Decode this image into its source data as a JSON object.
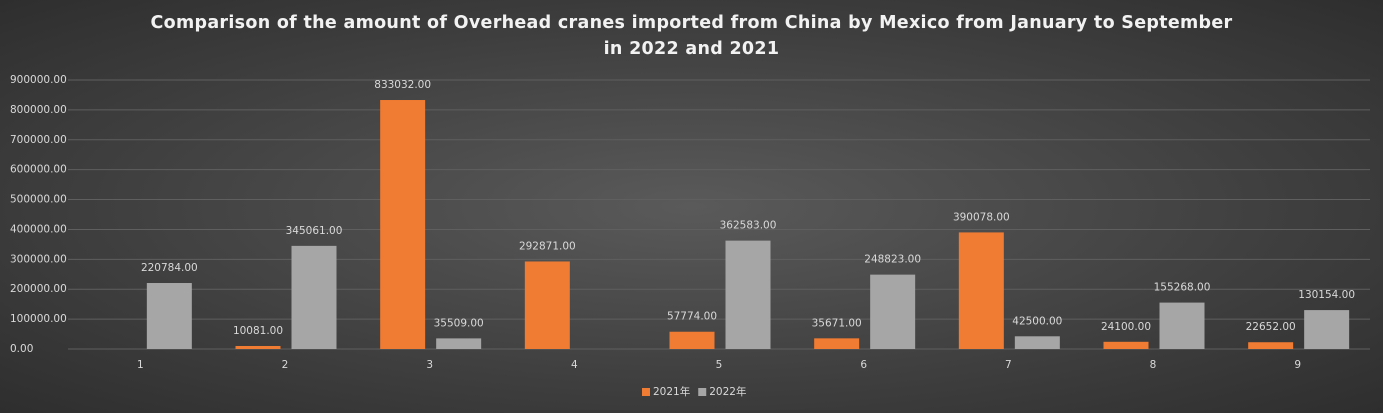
{
  "chart_data": {
    "type": "bar",
    "title": "Comparison of the amount of Overhead cranes imported from China by Mexico from January to September in 2022 and 2021",
    "categories": [
      "1",
      "2",
      "3",
      "4",
      "5",
      "6",
      "7",
      "8",
      "9"
    ],
    "series": [
      {
        "name": "2021年",
        "color": "#f07b32",
        "values": [
          null,
          10081,
          833032,
          292871,
          57774,
          35671,
          390078,
          24100,
          22652
        ],
        "value_labels": [
          null,
          "10081.00",
          "833032.00",
          "292871.00",
          "57774.00",
          "35671.00",
          "390078.00",
          "24100.00",
          "22652.00"
        ]
      },
      {
        "name": "2022年",
        "color": "#a6a6a6",
        "values": [
          220784,
          345061,
          35509,
          null,
          362583,
          248823,
          42500,
          155268,
          130154
        ],
        "value_labels": [
          "220784.00",
          "345061.00",
          "35509.00",
          null,
          "362583.00",
          "248823.00",
          "42500.00",
          "155268.00",
          "130154.00"
        ]
      }
    ],
    "ylim": [
      0,
      900000
    ],
    "yticks": [
      {
        "value": 0,
        "label": "0.00"
      },
      {
        "value": 100000,
        "label": "100000.00"
      },
      {
        "value": 200000,
        "label": "200000.00"
      },
      {
        "value": 300000,
        "label": "300000.00"
      },
      {
        "value": 400000,
        "label": "400000.00"
      },
      {
        "value": 500000,
        "label": "500000.00"
      },
      {
        "value": 600000,
        "label": "600000.00"
      },
      {
        "value": 700000,
        "label": "700000.00"
      },
      {
        "value": 800000,
        "label": "800000.00"
      },
      {
        "value": 900000,
        "label": "900000.00"
      }
    ],
    "grid": true,
    "legend": "bottom"
  }
}
